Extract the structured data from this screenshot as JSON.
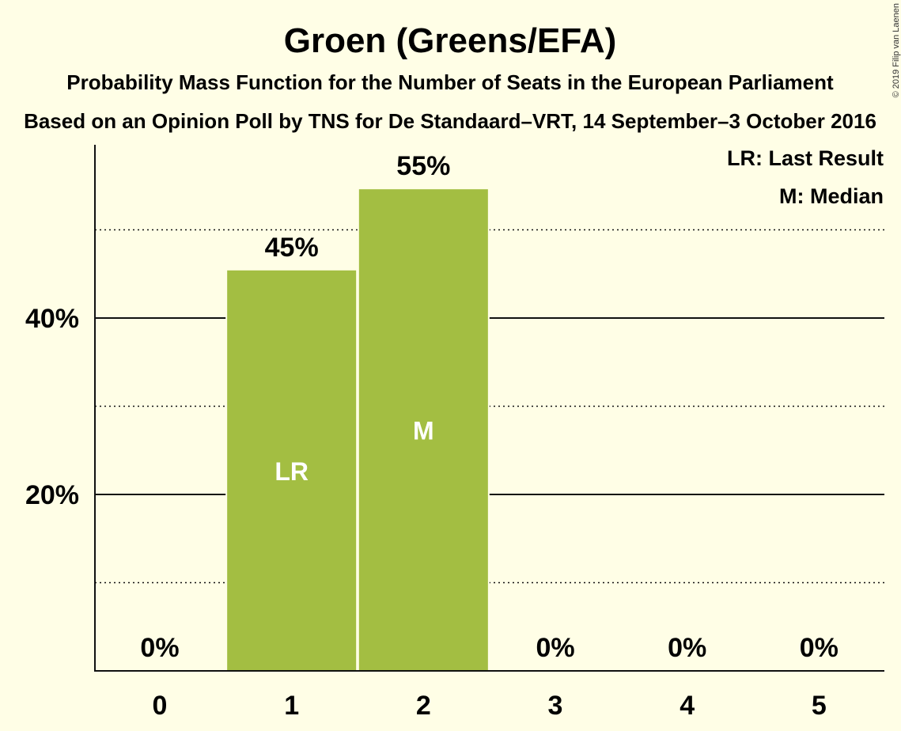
{
  "chart_data": {
    "type": "bar",
    "title": "Groen (Greens/EFA)",
    "subtitle": "Probability Mass Function for the Number of Seats in the European Parliament",
    "subtitle2": "Based on an Opinion Poll by TNS for De Standaard–VRT, 14 September–3 October 2016",
    "categories": [
      "0",
      "1",
      "2",
      "3",
      "4",
      "5"
    ],
    "values": [
      0,
      45.4,
      54.6,
      0,
      0,
      0
    ],
    "value_labels": [
      "0%",
      "45%",
      "55%",
      "0%",
      "0%",
      "0%"
    ],
    "bar_markers": [
      "",
      "LR",
      "M",
      "",
      "",
      ""
    ],
    "ylim": [
      0,
      60
    ],
    "y_ticks_major": [
      20,
      40
    ],
    "y_tick_labels": [
      "20%",
      "40%"
    ],
    "y_ticks_minor": [
      10,
      30,
      50
    ],
    "grid": true,
    "legend": {
      "position": "top-right",
      "items": [
        "LR: Last Result",
        "M: Median"
      ]
    },
    "bar_color": "#A3BE42",
    "background_color": "#FFFEE6"
  },
  "copyright": "© 2019 Filip van Laenen"
}
